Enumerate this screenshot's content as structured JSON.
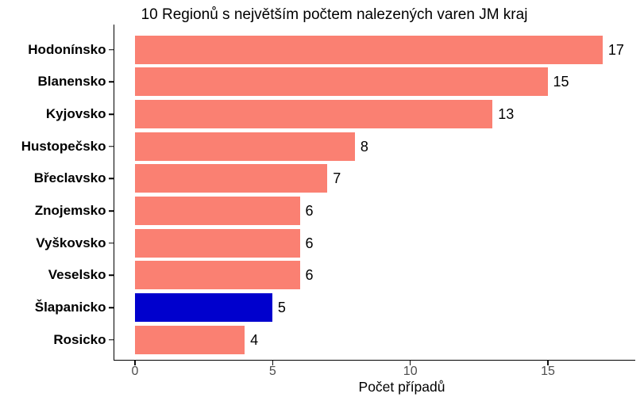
{
  "chart_data": {
    "type": "bar",
    "orientation": "horizontal",
    "title": "10 Regionů s největším počtem nalezených varen JM kraj",
    "xlabel": "Počet případů",
    "ylabel": "",
    "categories": [
      "Hodonínsko",
      "Blanensko",
      "Kyjovsko",
      "Hustopečsko",
      "Břeclavsko",
      "Znojemsko",
      "Vyškovsko",
      "Veselsko",
      "Šlapanicko",
      "Rosicko"
    ],
    "values": [
      17,
      15,
      13,
      8,
      7,
      6,
      6,
      6,
      5,
      4
    ],
    "bar_colors": [
      "#FA8072",
      "#FA8072",
      "#FA8072",
      "#FA8072",
      "#FA8072",
      "#FA8072",
      "#FA8072",
      "#FA8072",
      "#0000CD",
      "#FA8072"
    ],
    "highlight_category": "Šlapanicko",
    "x_ticks": [
      0,
      5,
      10,
      15
    ],
    "xlim": [
      0,
      18.2
    ],
    "grid": false,
    "legend": false,
    "colors": {
      "bar_default": "#FA8072",
      "bar_highlight": "#0000CD",
      "axis_line": "#000000",
      "tick_label": "#4d4d4d",
      "text": "#000000"
    }
  }
}
